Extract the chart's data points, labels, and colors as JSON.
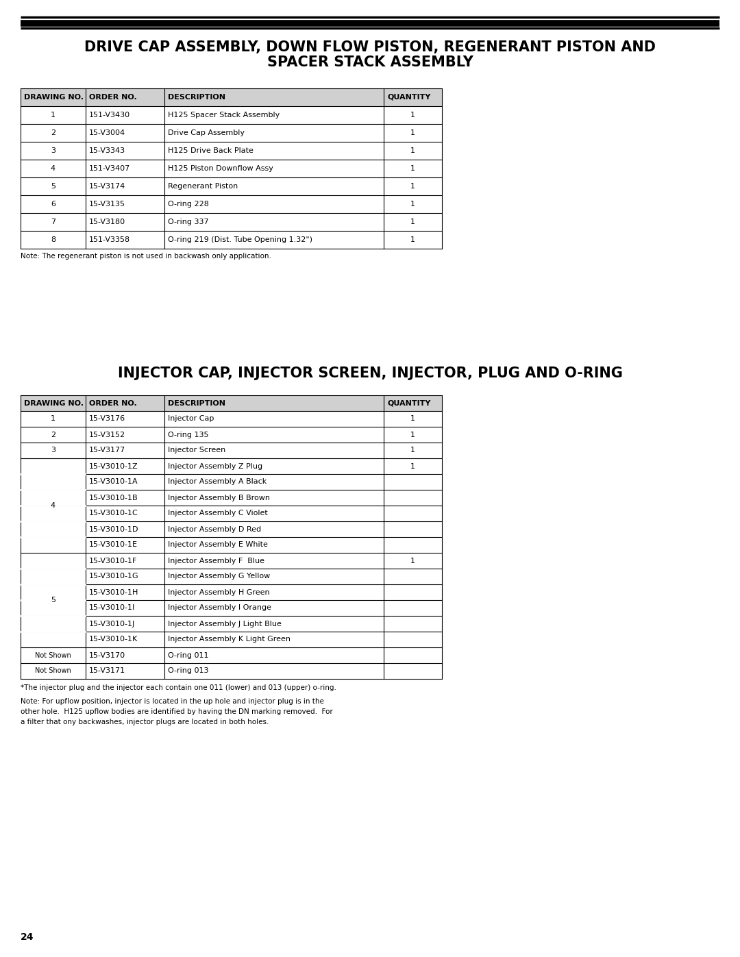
{
  "page_num": "24",
  "section1_title_line1": "DRIVE CAP ASSEMBLY, DOWN FLOW PISTON, REGENERANT PISTON AND",
  "section1_title_line2": "SPACER STACK ASSEMBLY",
  "section1_table_headers": [
    "DRAWING NO.",
    "ORDER NO.",
    "DESCRIPTION",
    "QUANTITY"
  ],
  "section1_table_rows": [
    [
      "1",
      "151-V3430",
      "H125 Spacer Stack Assembly",
      "1"
    ],
    [
      "2",
      "15-V3004",
      "Drive Cap Assembly",
      "1"
    ],
    [
      "3",
      "15-V3343",
      "H125 Drive Back Plate",
      "1"
    ],
    [
      "4",
      "151-V3407",
      "H125 Piston Downflow Assy",
      "1"
    ],
    [
      "5",
      "15-V3174",
      "Regenerant Piston",
      "1"
    ],
    [
      "6",
      "15-V3135",
      "O-ring 228",
      "1"
    ],
    [
      "7",
      "15-V3180",
      "O-ring 337",
      "1"
    ],
    [
      "8",
      "151-V3358",
      "O-ring 219 (Dist. Tube Opening 1.32\")",
      "1"
    ]
  ],
  "section1_note": "Note: The regenerant piston is not used in backwash only application.",
  "section2_title": "INJECTOR CAP, INJECTOR SCREEN, INJECTOR, PLUG AND O-RING",
  "section2_table_headers": [
    "DRAWING NO.",
    "ORDER NO.",
    "DESCRIPTION",
    "QUANTITY"
  ],
  "section2_table_rows": [
    [
      "1",
      "15-V3176",
      "Injector Cap",
      "1"
    ],
    [
      "2",
      "15-V3152",
      "O-ring 135",
      "1"
    ],
    [
      "3",
      "15-V3177",
      "Injector Screen",
      "1"
    ],
    [
      "4",
      "15-V3010-1Z",
      "Injector Assembly Z Plug",
      "1"
    ],
    [
      "",
      "15-V3010-1A",
      "Injector Assembly A Black",
      ""
    ],
    [
      "",
      "15-V3010-1B",
      "Injector Assembly B Brown",
      ""
    ],
    [
      "",
      "15-V3010-1C",
      "Injector Assembly C Violet",
      ""
    ],
    [
      "",
      "15-V3010-1D",
      "Injector Assembly D Red",
      ""
    ],
    [
      "",
      "15-V3010-1E",
      "Injector Assembly E White",
      ""
    ],
    [
      "5",
      "15-V3010-1F",
      "Injector Assembly F  Blue",
      "1"
    ],
    [
      "",
      "15-V3010-1G",
      "Injector Assembly G Yellow",
      ""
    ],
    [
      "",
      "15-V3010-1H",
      "Injector Assembly H Green",
      ""
    ],
    [
      "",
      "15-V3010-1I",
      "Injector Assembly I Orange",
      ""
    ],
    [
      "",
      "15-V3010-1J",
      "Injector Assembly J Light Blue",
      ""
    ],
    [
      "",
      "15-V3010-1K",
      "Injector Assembly K Light Green",
      ""
    ],
    [
      "Not Shown",
      "15-V3170",
      "O-ring 011",
      ""
    ],
    [
      "Not Shown",
      "15-V3171",
      "O-ring 013",
      ""
    ]
  ],
  "section2_note1": "*The injector plug and the injector each contain one 011 (lower) and 013 (upper) o-ring.",
  "section2_note2": "Note: For upflow position, injector is located in the up hole and injector plug is in the\nother hole.  H125 upflow bodies are identified by having the DN marking removed.  For\na filter that ony backwashes, injector plugs are located in both holes.",
  "bg_color": "#ffffff",
  "title_font_size": 15,
  "header_font_size": 8,
  "cell_font_size": 8,
  "note_font_size": 7.5
}
